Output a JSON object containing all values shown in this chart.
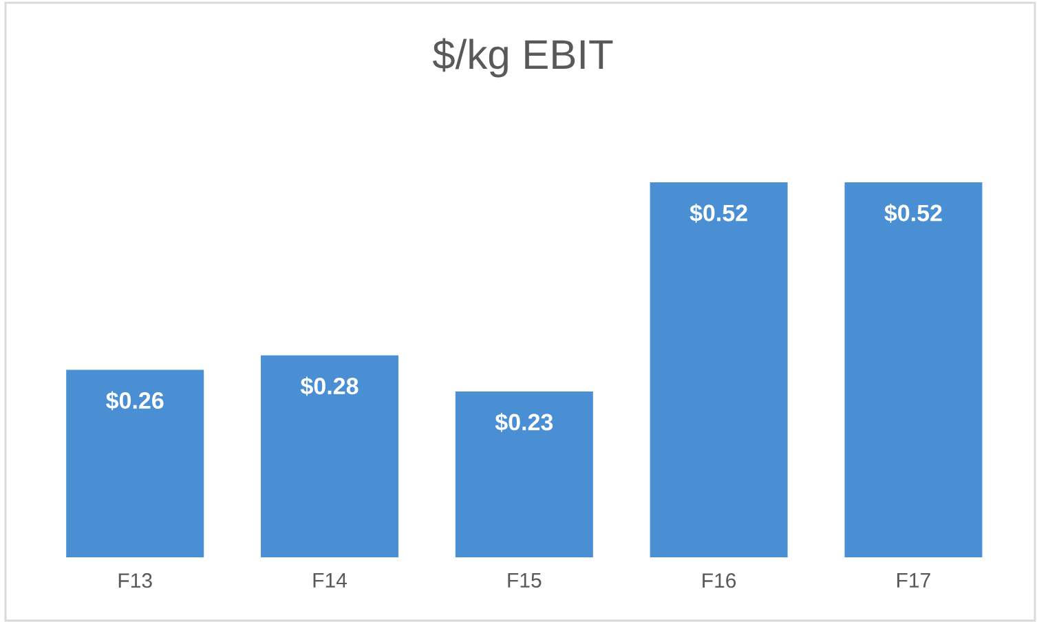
{
  "chart_data": {
    "type": "bar",
    "title": "$/kg EBIT",
    "categories": [
      "F13",
      "F14",
      "F15",
      "F16",
      "F17"
    ],
    "values": [
      0.26,
      0.28,
      0.23,
      0.52,
      0.52
    ],
    "value_labels": [
      "$0.26",
      "$0.28",
      "$0.23",
      "$0.52",
      "$0.52"
    ],
    "color": "#4a8fd4"
  }
}
